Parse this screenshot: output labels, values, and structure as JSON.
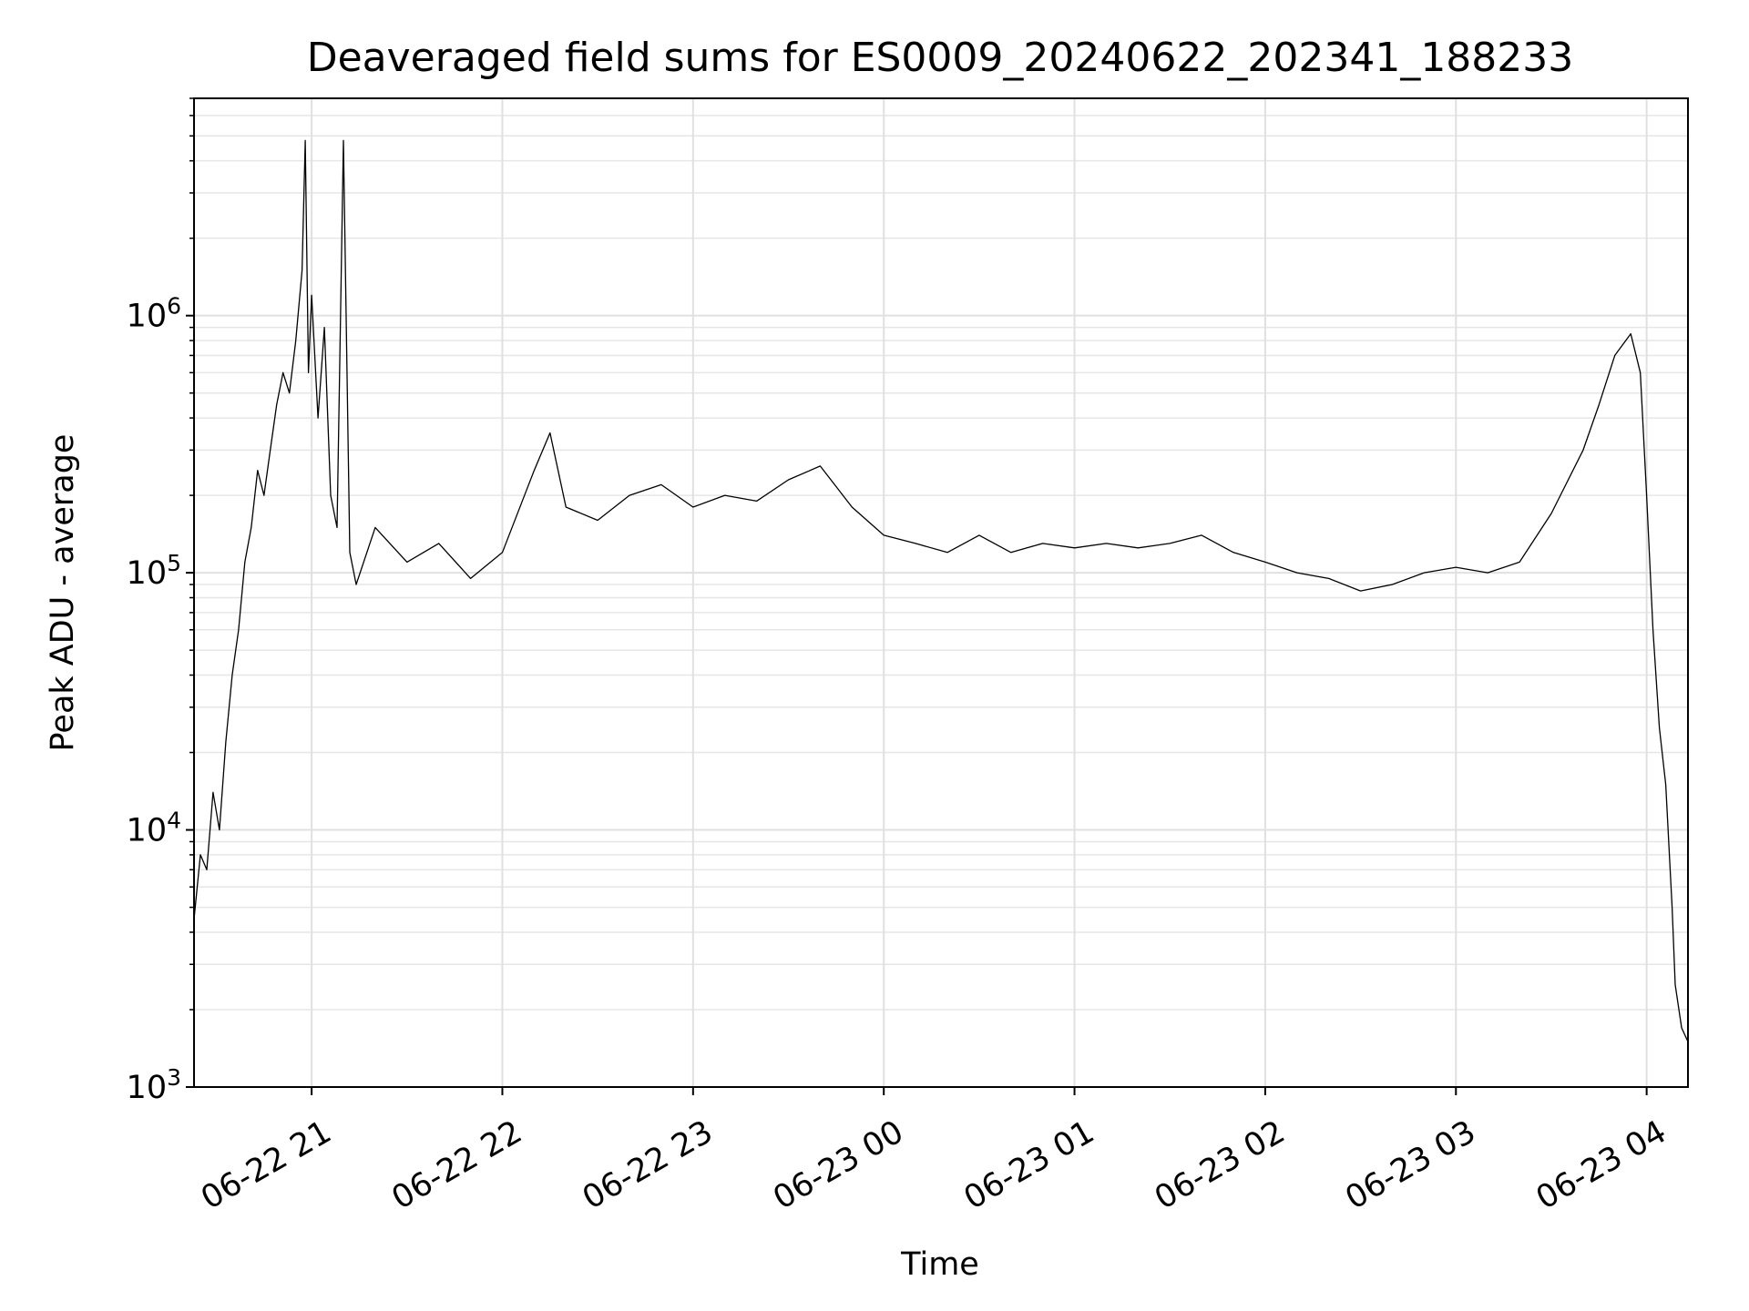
{
  "chart_data": {
    "type": "line",
    "title": "Deaveraged field sums for ES0009_20240622_202341_188233",
    "xlabel": "Time",
    "ylabel": "Peak ADU - average",
    "yscale": "log",
    "ylim": [
      1000,
      7000000
    ],
    "xlim": [
      "2024-06-22 20:23",
      "2024-06-23 04:13"
    ],
    "x_ticks": [
      {
        "value": "2024-06-22 21:00",
        "label": "06-22 21"
      },
      {
        "value": "2024-06-22 22:00",
        "label": "06-22 22"
      },
      {
        "value": "2024-06-22 23:00",
        "label": "06-22 23"
      },
      {
        "value": "2024-06-23 00:00",
        "label": "06-23 00"
      },
      {
        "value": "2024-06-23 01:00",
        "label": "06-23 01"
      },
      {
        "value": "2024-06-23 02:00",
        "label": "06-23 02"
      },
      {
        "value": "2024-06-23 03:00",
        "label": "06-23 03"
      },
      {
        "value": "2024-06-23 04:00",
        "label": "06-23 04"
      }
    ],
    "y_ticks": [
      {
        "value": 1000,
        "base": "10",
        "exp": "3"
      },
      {
        "value": 10000,
        "base": "10",
        "exp": "4"
      },
      {
        "value": 100000,
        "base": "10",
        "exp": "5"
      },
      {
        "value": 1000000,
        "base": "10",
        "exp": "6"
      }
    ],
    "grid": true,
    "series": [
      {
        "color": "#000000",
        "points": [
          [
            "2024-06-22 20:23",
            4500
          ],
          [
            "2024-06-22 20:25",
            8000
          ],
          [
            "2024-06-22 20:27",
            7000
          ],
          [
            "2024-06-22 20:29",
            14000
          ],
          [
            "2024-06-22 20:31",
            10000
          ],
          [
            "2024-06-22 20:33",
            22000
          ],
          [
            "2024-06-22 20:35",
            40000
          ],
          [
            "2024-06-22 20:37",
            60000
          ],
          [
            "2024-06-22 20:39",
            110000
          ],
          [
            "2024-06-22 20:41",
            150000
          ],
          [
            "2024-06-22 20:43",
            250000
          ],
          [
            "2024-06-22 20:45",
            200000
          ],
          [
            "2024-06-22 20:47",
            300000
          ],
          [
            "2024-06-22 20:49",
            450000
          ],
          [
            "2024-06-22 20:51",
            600000
          ],
          [
            "2024-06-22 20:53",
            500000
          ],
          [
            "2024-06-22 20:55",
            800000
          ],
          [
            "2024-06-22 20:57",
            1500000
          ],
          [
            "2024-06-22 20:58",
            4800000
          ],
          [
            "2024-06-22 20:59",
            600000
          ],
          [
            "2024-06-22 21:00",
            1200000
          ],
          [
            "2024-06-22 21:02",
            400000
          ],
          [
            "2024-06-22 21:04",
            900000
          ],
          [
            "2024-06-22 21:06",
            200000
          ],
          [
            "2024-06-22 21:08",
            150000
          ],
          [
            "2024-06-22 21:10",
            4800000
          ],
          [
            "2024-06-22 21:12",
            120000
          ],
          [
            "2024-06-22 21:14",
            90000
          ],
          [
            "2024-06-22 21:20",
            150000
          ],
          [
            "2024-06-22 21:30",
            110000
          ],
          [
            "2024-06-22 21:40",
            130000
          ],
          [
            "2024-06-22 21:50",
            95000
          ],
          [
            "2024-06-22 22:00",
            120000
          ],
          [
            "2024-06-22 22:10",
            250000
          ],
          [
            "2024-06-22 22:15",
            350000
          ],
          [
            "2024-06-22 22:20",
            180000
          ],
          [
            "2024-06-22 22:30",
            160000
          ],
          [
            "2024-06-22 22:40",
            200000
          ],
          [
            "2024-06-22 22:50",
            220000
          ],
          [
            "2024-06-22 23:00",
            180000
          ],
          [
            "2024-06-22 23:10",
            200000
          ],
          [
            "2024-06-22 23:20",
            190000
          ],
          [
            "2024-06-22 23:30",
            230000
          ],
          [
            "2024-06-22 23:40",
            260000
          ],
          [
            "2024-06-22 23:50",
            180000
          ],
          [
            "2024-06-23 00:00",
            140000
          ],
          [
            "2024-06-23 00:10",
            130000
          ],
          [
            "2024-06-23 00:20",
            120000
          ],
          [
            "2024-06-23 00:30",
            140000
          ],
          [
            "2024-06-23 00:40",
            120000
          ],
          [
            "2024-06-23 00:50",
            130000
          ],
          [
            "2024-06-23 01:00",
            125000
          ],
          [
            "2024-06-23 01:10",
            130000
          ],
          [
            "2024-06-23 01:20",
            125000
          ],
          [
            "2024-06-23 01:30",
            130000
          ],
          [
            "2024-06-23 01:40",
            140000
          ],
          [
            "2024-06-23 01:50",
            120000
          ],
          [
            "2024-06-23 02:00",
            110000
          ],
          [
            "2024-06-23 02:10",
            100000
          ],
          [
            "2024-06-23 02:20",
            95000
          ],
          [
            "2024-06-23 02:30",
            85000
          ],
          [
            "2024-06-23 02:40",
            90000
          ],
          [
            "2024-06-23 02:50",
            100000
          ],
          [
            "2024-06-23 03:00",
            105000
          ],
          [
            "2024-06-23 03:10",
            100000
          ],
          [
            "2024-06-23 03:20",
            110000
          ],
          [
            "2024-06-23 03:30",
            170000
          ],
          [
            "2024-06-23 03:40",
            300000
          ],
          [
            "2024-06-23 03:45",
            450000
          ],
          [
            "2024-06-23 03:50",
            700000
          ],
          [
            "2024-06-23 03:55",
            850000
          ],
          [
            "2024-06-23 03:58",
            600000
          ],
          [
            "2024-06-23 04:00",
            200000
          ],
          [
            "2024-06-23 04:02",
            60000
          ],
          [
            "2024-06-23 04:04",
            25000
          ],
          [
            "2024-06-23 04:06",
            15000
          ],
          [
            "2024-06-23 04:08",
            5000
          ],
          [
            "2024-06-23 04:09",
            2500
          ],
          [
            "2024-06-23 04:11",
            1700
          ],
          [
            "2024-06-23 04:13",
            1500
          ]
        ]
      }
    ]
  }
}
